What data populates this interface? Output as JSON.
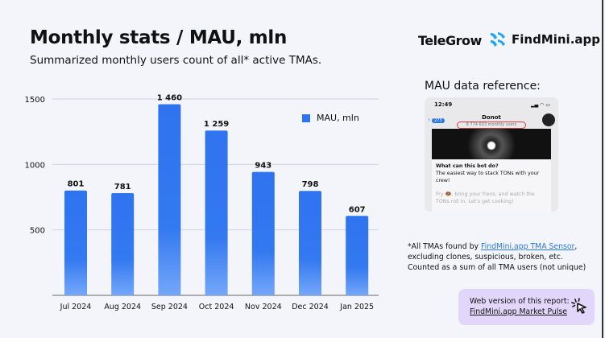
{
  "header": {
    "title": "Monthly stats / MAU, mln",
    "subtitle": "Summarized monthly users count of all* active TMAs."
  },
  "logos": {
    "telegrow": "TeleGrow",
    "findmini": "FindMini.app"
  },
  "reference": {
    "title": "MAU data reference:",
    "phone": {
      "time": "12:49",
      "back_count": "273",
      "bot_name": "Donot",
      "monthly_users": "8 774 603 monthly users",
      "card_title": "What can this bot do?",
      "card_text": "The easiest way to stack TONs with your crew!",
      "card_faded": "Fry 🍩, bring your frens, and watch the TONs roll in. Let's get cooking!"
    }
  },
  "footnote": {
    "prefix": "*All TMAs found by ",
    "link": "FindMini.app TMA Sensor",
    "suffix": ",",
    "line2": "excluding clones, suspicious, broken, etc.",
    "line3": "Counted as a sum of all TMA users (not unique)"
  },
  "web_box": {
    "line1": "Web version of this report:",
    "line2": "FindMini.app Market Pulse",
    "icon": "cursor-click-icon"
  },
  "colors": {
    "bar_top": "#2f73ef",
    "bar_bottom": "#6fa3fa",
    "background": "#f3f5fb",
    "web_box": "#e3d6fb",
    "link": "#2a7ae2"
  },
  "chart_data": {
    "type": "bar",
    "categories": [
      "Jul 2024",
      "Aug 2024",
      "Sep 2024",
      "Oct 2024",
      "Nov 2024",
      "Dec 2024",
      "Jan 2025"
    ],
    "series": [
      {
        "name": "MAU, mln",
        "values": [
          801,
          781,
          1460,
          1259,
          943,
          798,
          607
        ]
      }
    ],
    "data_labels": [
      "801",
      "781",
      "1 460",
      "1 259",
      "943",
      "798",
      "607"
    ],
    "yticks": [
      500,
      1000,
      1500
    ],
    "ylim": [
      0,
      1500
    ],
    "grid": true,
    "legend": "top-right"
  }
}
